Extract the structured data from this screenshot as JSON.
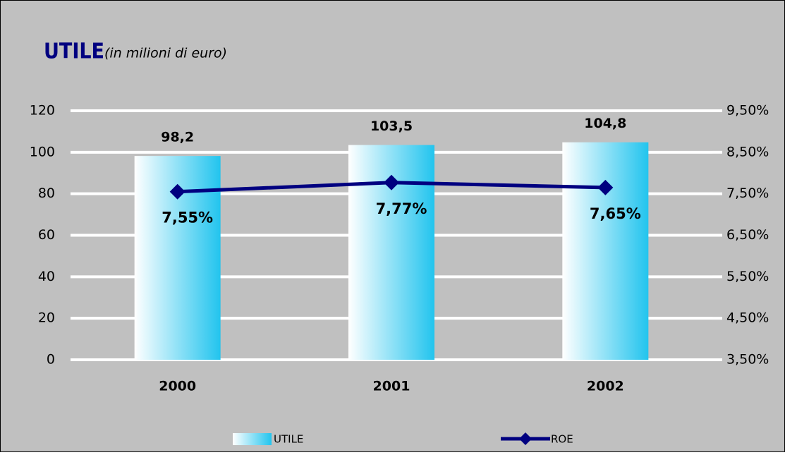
{
  "chart_data": {
    "type": "bar-line",
    "title": "UTILE",
    "subtitle": "(in milioni di euro)",
    "categories": [
      "2000",
      "2001",
      "2002"
    ],
    "series": [
      {
        "name": "UTILE",
        "type": "bar",
        "color": "#22c4ee",
        "values": [
          98.2,
          103.5,
          104.8
        ],
        "value_labels": [
          "98,2",
          "103,5",
          "104,8"
        ]
      },
      {
        "name": "ROE",
        "type": "line",
        "axis": "y2",
        "color": "#000080",
        "values": [
          7.55,
          7.77,
          7.65
        ],
        "value_labels": [
          "7,55%",
          "7,77%",
          "7,65%"
        ]
      }
    ],
    "ylim": [
      0,
      120
    ],
    "yticks": [
      0,
      20,
      40,
      60,
      80,
      100,
      120
    ],
    "y2lim": [
      3.5,
      9.5
    ],
    "y2ticks": [
      {
        "value": 3.5,
        "label": "3,50%"
      },
      {
        "value": 4.5,
        "label": "4,50%"
      },
      {
        "value": 5.5,
        "label": "5,50%"
      },
      {
        "value": 6.5,
        "label": "6,50%"
      },
      {
        "value": 7.5,
        "label": "7,50%"
      },
      {
        "value": 8.5,
        "label": "8,50%"
      },
      {
        "value": 9.5,
        "label": "9,50%"
      }
    ],
    "grid": true,
    "legend": "bottom"
  }
}
